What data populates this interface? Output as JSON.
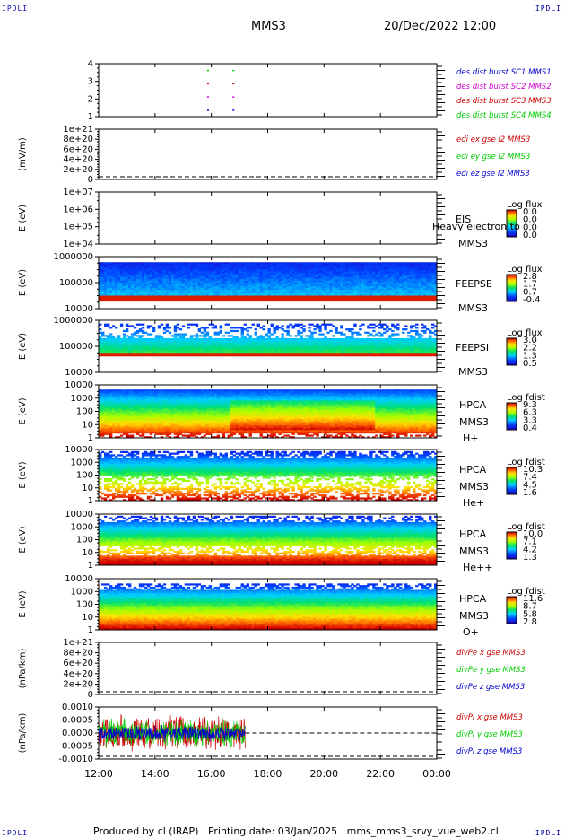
{
  "header": {
    "corner_label": "IPDLI",
    "mission": "MMS3",
    "datetime": "20/Dec/2022 12:00"
  },
  "footer": {
    "text": "Produced by cl (IRAP)   Printing date: 03/Jan/2025   mms_mms3_srvy_vue_web2.cl"
  },
  "colors": {
    "black": "#000000",
    "blue": "#0000cc",
    "magenta": "#cc00cc",
    "red": "#cc0000",
    "green": "#00cc00"
  },
  "x_axis": {
    "ticks": [
      "12:00",
      "14:00",
      "16:00",
      "18:00",
      "20:00",
      "22:00",
      "00:00"
    ],
    "range_hours": [
      12,
      24
    ]
  },
  "chart_data": [
    {
      "type": "scatter",
      "ylim": [
        0.5,
        4.5
      ],
      "yticks": [
        "4",
        "3",
        "2",
        "1"
      ],
      "legend": [
        "des dist burst SC1 MMS1",
        "des dist burst SC2 MMS2",
        "des dist burst SC3 MMS3",
        "des dist burst SC4 MMS4"
      ],
      "legend_colors": [
        "blue",
        "magenta",
        "red",
        "green"
      ],
      "series": [
        {
          "name": "des dist burst SC4 MMS4",
          "y": 4,
          "x": [
            15.85,
            16.75
          ]
        },
        {
          "name": "des dist burst SC3 MMS3",
          "y": 3,
          "x": [
            15.85,
            16.75
          ]
        },
        {
          "name": "des dist burst SC2 MMS2",
          "y": 2,
          "x": [
            15.85,
            16.75
          ]
        },
        {
          "name": "des dist burst SC1 MMS1",
          "y": 1,
          "x": [
            15.85,
            16.75
          ]
        }
      ]
    },
    {
      "type": "line",
      "ylabel": "(mV/m)",
      "yticks": [
        "1e+21",
        "8e+20",
        "6e+20",
        "4e+20",
        "2e+20",
        "0"
      ],
      "legend": [
        "edi ex gse l2 MMS3",
        "edi ey gse l2 MMS3",
        "edi ez gse l2 MMS3"
      ],
      "legend_colors": [
        "red",
        "green",
        "blue"
      ],
      "zero_line": true
    },
    {
      "type": "heatmap",
      "ylabel": "E (eV)",
      "yticks": [
        "1e+07",
        "1e+06",
        "1e+05",
        "1e+04"
      ],
      "instrument": "EIS",
      "overlay_text": "Heavy electron to",
      "spacecraft": "MMS3",
      "cbar_title": "Log flux",
      "cbar_ticks": [
        "0.0",
        "0.0",
        "0.0",
        "0.0"
      ]
    },
    {
      "type": "heatmap",
      "ylabel": "E (eV)",
      "yticks": [
        "1000000",
        "100000",
        "10000"
      ],
      "instrument": "FEEPSE",
      "spacecraft": "MMS3",
      "cbar_title": "Log flux",
      "cbar_ticks": [
        "2.8",
        "1.7",
        "0.7",
        "-0.4"
      ]
    },
    {
      "type": "heatmap",
      "ylabel": "E (eV)",
      "yticks": [
        "1000000",
        "100000",
        "10000"
      ],
      "instrument": "FEEPSI",
      "spacecraft": "MMS3",
      "cbar_title": "Log flux",
      "cbar_ticks": [
        "3.0",
        "2.2",
        "1.3",
        "0.5"
      ]
    },
    {
      "type": "heatmap",
      "ylabel": "E (eV)",
      "yticks": [
        "10000",
        "1000",
        "100",
        "10",
        "1"
      ],
      "instrument": "HPCA",
      "spacecraft": "MMS3",
      "species": "H+",
      "cbar_title": "Log fdist",
      "cbar_ticks": [
        "9.3",
        "6.3",
        "3.3",
        "0.4"
      ]
    },
    {
      "type": "heatmap",
      "ylabel": "E (eV)",
      "yticks": [
        "10000",
        "1000",
        "100",
        "10",
        "1"
      ],
      "instrument": "HPCA",
      "spacecraft": "MMS3",
      "species": "He+",
      "cbar_title": "Log fdist",
      "cbar_ticks": [
        "10.3",
        "7.4",
        "4.5",
        "1.6"
      ]
    },
    {
      "type": "heatmap",
      "ylabel": "E (eV)",
      "yticks": [
        "10000",
        "1000",
        "100",
        "10",
        "1"
      ],
      "instrument": "HPCA",
      "spacecraft": "MMS3",
      "species": "He++",
      "cbar_title": "Log fdist",
      "cbar_ticks": [
        "10.0",
        "7.1",
        "4.2",
        "1.3"
      ]
    },
    {
      "type": "heatmap",
      "ylabel": "E (eV)",
      "yticks": [
        "10000",
        "1000",
        "100",
        "10",
        "1"
      ],
      "instrument": "HPCA",
      "spacecraft": "MMS3",
      "species": "O+",
      "cbar_title": "Log fdist",
      "cbar_ticks": [
        "11.6",
        "8.7",
        "5.8",
        "2.8"
      ]
    },
    {
      "type": "line",
      "ylabel": "(nPa/km)",
      "yticks": [
        "1e+21",
        "8e+20",
        "6e+20",
        "4e+20",
        "2e+20",
        "0"
      ],
      "legend": [
        "divPe x gse MMS3",
        "divPe y gse MMS3",
        "divPe z gse MMS3"
      ],
      "legend_colors": [
        "red",
        "green",
        "blue"
      ],
      "zero_line": true
    },
    {
      "type": "line",
      "ylabel": "(nPa/km)",
      "yticks": [
        "0.0010",
        "0.0005",
        "0.0000",
        "-0.0005",
        "-0.0010"
      ],
      "ylim": [
        -0.0012,
        0.0012
      ],
      "legend": [
        "divPi x gse MMS3",
        "divPi y gse MMS3",
        "divPi z gse MMS3"
      ],
      "legend_colors": [
        "red",
        "green",
        "blue"
      ],
      "data_span_hours": [
        12,
        17.2
      ],
      "amplitude": {
        "red": 0.0009,
        "green": 0.0007,
        "blue": 0.0004
      },
      "zero_line": true
    }
  ]
}
